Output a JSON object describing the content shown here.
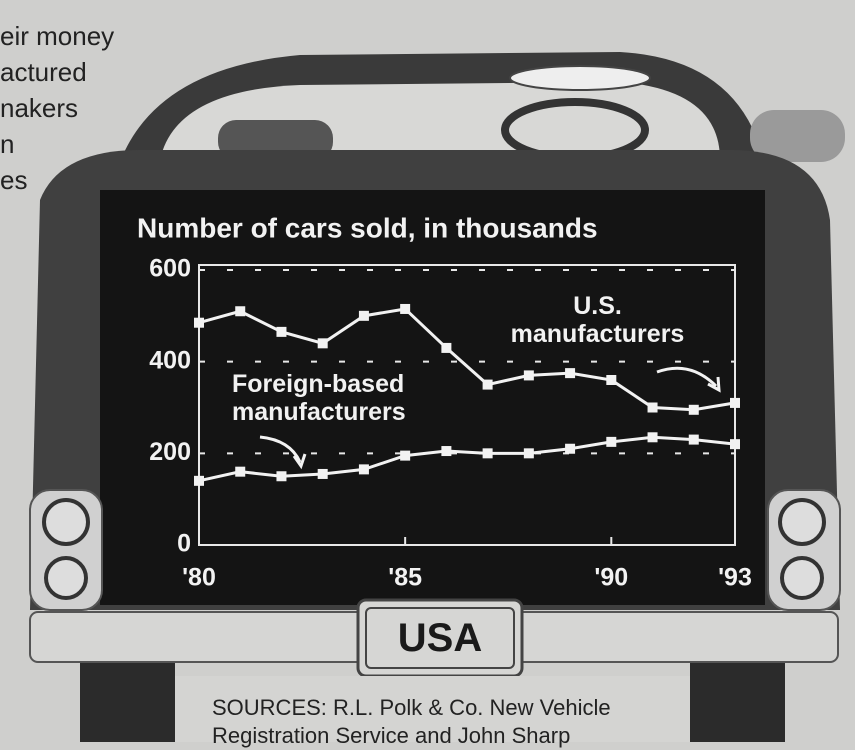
{
  "article_text": [
    "eir money",
    "actured",
    "nakers",
    "n",
    "es"
  ],
  "plate": "USA",
  "sources": [
    "SOURCES: R.L. Polk & Co. New Vehicle",
    "Registration Service and John Sharp"
  ],
  "chart_data": {
    "type": "line",
    "title": "Number of cars sold, in thousands",
    "x": [
      1980,
      1981,
      1982,
      1983,
      1984,
      1985,
      1986,
      1987,
      1988,
      1989,
      1990,
      1991,
      1992,
      1993
    ],
    "series": [
      {
        "name": "U.S. manufacturers",
        "color": "#f2f2f2",
        "values": [
          485,
          510,
          465,
          440,
          500,
          515,
          430,
          350,
          370,
          375,
          360,
          300,
          295,
          310
        ]
      },
      {
        "name": "Foreign-based manufacturers",
        "color": "#f2f2f2",
        "values": [
          140,
          160,
          150,
          155,
          165,
          195,
          205,
          200,
          200,
          210,
          225,
          235,
          230,
          220
        ]
      }
    ],
    "xlim": [
      1980,
      1993
    ],
    "xticks": [
      {
        "value": 1980,
        "label": "'80"
      },
      {
        "value": 1985,
        "label": "'85"
      },
      {
        "value": 1990,
        "label": "'90"
      },
      {
        "value": 1993,
        "label": "'93"
      }
    ],
    "ylim": [
      0,
      600
    ],
    "yticks": [
      0,
      200,
      400,
      600
    ],
    "grid": true
  }
}
